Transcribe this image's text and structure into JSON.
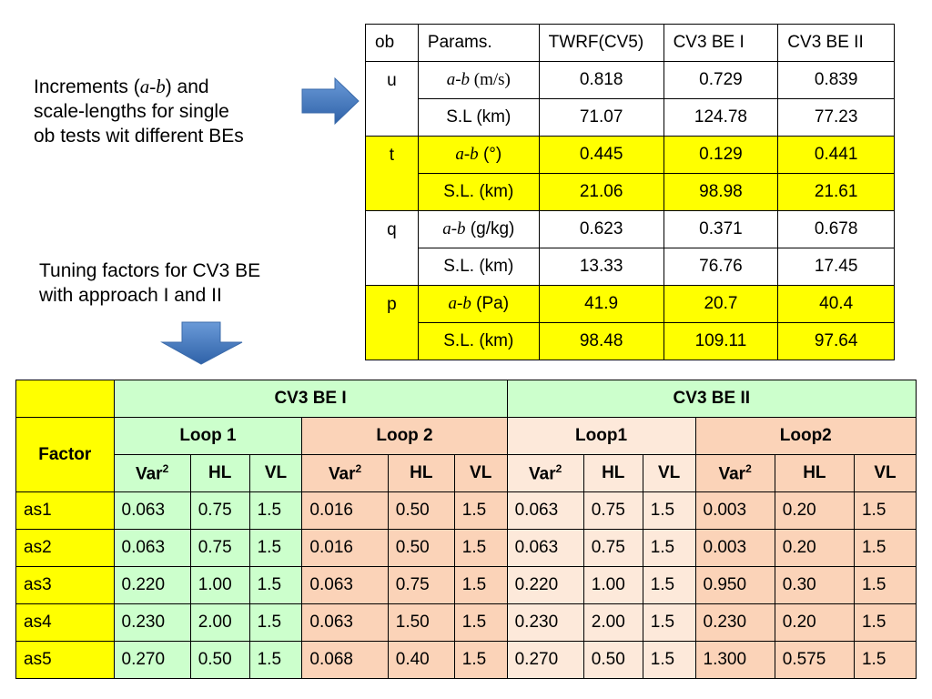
{
  "notes": {
    "increments_pre": "Increments (",
    "increments_ab": "a-b",
    "increments_post": ") and",
    "increments_line2": "scale-lengths for single",
    "increments_line3": "ob tests wit different BEs",
    "tuning_line1": "Tuning factors for CV3 BE",
    "tuning_line2": "with approach I and II"
  },
  "top_table": {
    "headers": [
      "ob",
      "Params.",
      "TWRF(CV5)",
      "CV3 BE I",
      "CV3 BE II"
    ],
    "groups": [
      {
        "ob": "u",
        "rows": [
          {
            "param_ab": "a-b",
            "param_unit": " (m/s)",
            "values": [
              "0.818",
              "0.729",
              "0.839"
            ]
          },
          {
            "param": "S.L (km)",
            "values": [
              "71.07",
              "124.78",
              "77.23"
            ]
          }
        ]
      },
      {
        "ob": "t",
        "rows": [
          {
            "param_ab": "a-b",
            "param_unit": " (°)",
            "values": [
              "0.445",
              "0.129",
              "0.441"
            ]
          },
          {
            "param": "S.L. (km)",
            "values": [
              "21.06",
              "98.98",
              "21.61"
            ]
          }
        ]
      },
      {
        "ob": "q",
        "rows": [
          {
            "param_ab": "a-b",
            "param_unit": " (g/kg)",
            "values": [
              "0.623",
              "0.371",
              "0.678"
            ]
          },
          {
            "param": "S.L. (km)",
            "values": [
              "13.33",
              "76.76",
              "17.45"
            ]
          }
        ]
      },
      {
        "ob": "p",
        "rows": [
          {
            "param_ab": "a-b",
            "param_unit": " (Pa)",
            "values": [
              "41.9",
              "20.7",
              "40.4"
            ]
          },
          {
            "param": "S.L. (km)",
            "values": [
              "98.48",
              "109.11",
              "97.64"
            ]
          }
        ]
      }
    ]
  },
  "bottom_table": {
    "be1": "CV3 BE I",
    "be2": "CV3 BE II",
    "factor": "Factor",
    "loops": [
      "Loop 1",
      "Loop 2",
      "Loop1",
      "Loop2"
    ],
    "var": "Var",
    "var_sup": "2",
    "hl": "HL",
    "vl": "VL",
    "rows": [
      {
        "name": "as1",
        "values": [
          "0.063",
          "0.75",
          "1.5",
          "0.016",
          "0.50",
          "1.5",
          "0.063",
          "0.75",
          "1.5",
          "0.003",
          "0.20",
          "1.5"
        ]
      },
      {
        "name": "as2",
        "values": [
          "0.063",
          "0.75",
          "1.5",
          "0.016",
          "0.50",
          "1.5",
          "0.063",
          "0.75",
          "1.5",
          "0.003",
          "0.20",
          "1.5"
        ]
      },
      {
        "name": "as3",
        "values": [
          "0.220",
          "1.00",
          "1.5",
          "0.063",
          "0.75",
          "1.5",
          "0.220",
          "1.00",
          "1.5",
          "0.950",
          "0.30",
          "1.5"
        ]
      },
      {
        "name": "as4",
        "values": [
          "0.230",
          "2.00",
          "1.5",
          "0.063",
          "1.50",
          "1.5",
          "0.230",
          "2.00",
          "1.5",
          "0.230",
          "0.20",
          "1.5"
        ]
      },
      {
        "name": "as5",
        "values": [
          "0.270",
          "0.50",
          "1.5",
          "0.068",
          "0.40",
          "1.5",
          "0.270",
          "0.50",
          "1.5",
          "1.300",
          "0.575",
          "1.5"
        ]
      }
    ]
  },
  "colors": {
    "yellow": "#ffff00",
    "green": "#ccffcc",
    "orange": "#fbd3b8",
    "peach": "#fde9da",
    "arrow_blue": "#4a7dc3"
  },
  "icons": {
    "right_arrow": "arrow-right-icon",
    "down_arrow": "arrow-down-icon"
  }
}
